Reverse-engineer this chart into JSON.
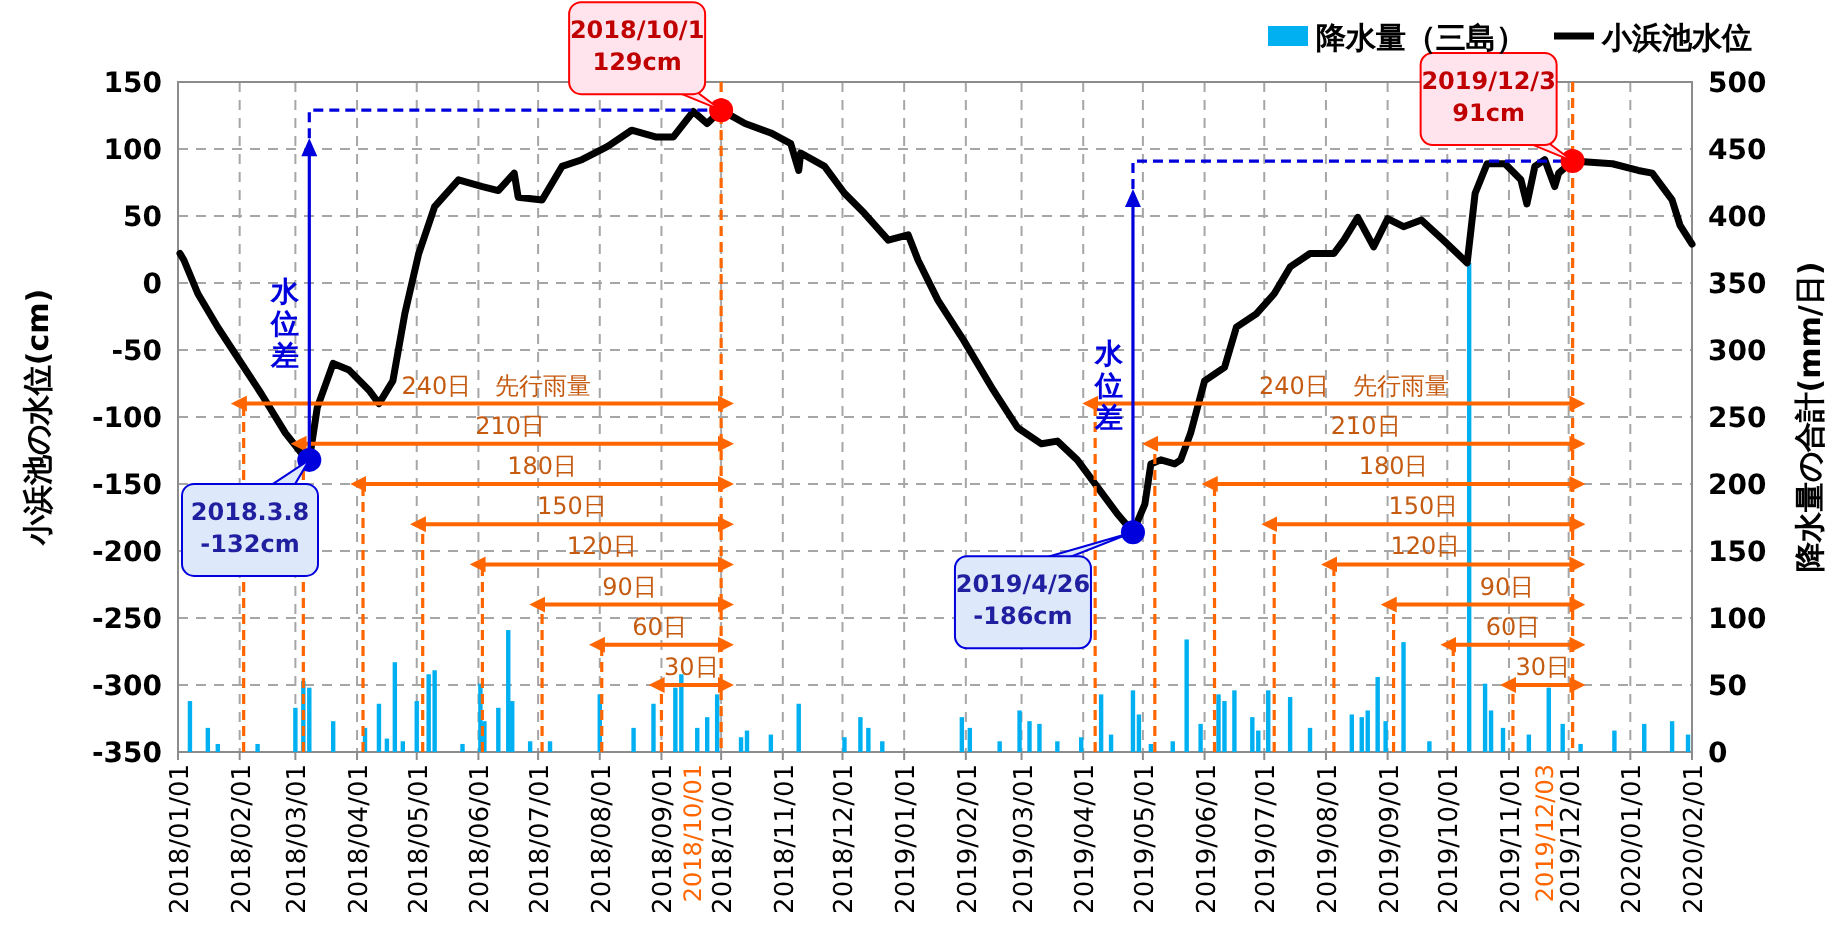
{
  "chart_data": {
    "type": "line",
    "ylabel": "小浜池の水位(cm)",
    "y2label": "降水量の合計(mm/日)",
    "xlim": [
      "2018-01-01",
      "2020-02-01"
    ],
    "xticks": [
      {
        "value": "2018-01-01",
        "label": "2018/01/01"
      },
      {
        "value": "2018-02-01",
        "label": "2018/02/01"
      },
      {
        "value": "2018-03-01",
        "label": "2018/03/01"
      },
      {
        "value": "2018-04-01",
        "label": "2018/04/01"
      },
      {
        "value": "2018-05-01",
        "label": "2018/05/01"
      },
      {
        "value": "2018-06-01",
        "label": "2018/06/01"
      },
      {
        "value": "2018-07-01",
        "label": "2018/07/01"
      },
      {
        "value": "2018-08-01",
        "label": "2018/08/01"
      },
      {
        "value": "2018-09-01",
        "label": "2018/09/01"
      },
      {
        "value": "2018-10-01",
        "label": "2018/10/01"
      },
      {
        "value": "2018-11-01",
        "label": "2018/11/01"
      },
      {
        "value": "2018-12-01",
        "label": "2018/12/01"
      },
      {
        "value": "2019-01-01",
        "label": "2019/01/01"
      },
      {
        "value": "2019-02-01",
        "label": "2019/02/01"
      },
      {
        "value": "2019-03-01",
        "label": "2019/03/01"
      },
      {
        "value": "2019-04-01",
        "label": "2019/04/01"
      },
      {
        "value": "2019-05-01",
        "label": "2019/05/01"
      },
      {
        "value": "2019-06-01",
        "label": "2019/06/01"
      },
      {
        "value": "2019-07-01",
        "label": "2019/07/01"
      },
      {
        "value": "2019-08-01",
        "label": "2019/08/01"
      },
      {
        "value": "2019-09-01",
        "label": "2019/09/01"
      },
      {
        "value": "2019-10-01",
        "label": "2019/10/01"
      },
      {
        "value": "2019-11-01",
        "label": "2019/11/01"
      },
      {
        "value": "2019-12-01",
        "label": "2019/12/01"
      },
      {
        "value": "2020-01-01",
        "label": "2020/01/01"
      },
      {
        "value": "2020-02-01",
        "label": "2020/02/01"
      }
    ],
    "ylim": [
      -350,
      150
    ],
    "yticks": [
      -350,
      -300,
      -250,
      -200,
      -150,
      -100,
      -50,
      0,
      50,
      100,
      150
    ],
    "y2lim": [
      0,
      500
    ],
    "y2ticks": [
      0,
      50,
      100,
      150,
      200,
      250,
      300,
      350,
      400,
      450,
      500
    ],
    "grid": true,
    "legend": "top right",
    "series": [
      {
        "name": "降水量（三島）",
        "type": "bar",
        "axis": "y2",
        "color": "#00b0f0",
        "x": [
          "2018-01-07",
          "2018-01-16",
          "2018-01-21",
          "2018-02-10",
          "2018-03-01",
          "2018-03-05",
          "2018-03-08",
          "2018-03-20",
          "2018-04-05",
          "2018-04-12",
          "2018-04-16",
          "2018-04-20",
          "2018-04-24",
          "2018-05-01",
          "2018-05-07",
          "2018-05-10",
          "2018-05-24",
          "2018-06-02",
          "2018-06-04",
          "2018-06-11",
          "2018-06-16",
          "2018-06-18",
          "2018-06-27",
          "2018-07-07",
          "2018-08-01",
          "2018-08-18",
          "2018-08-28",
          "2018-09-08",
          "2018-09-11",
          "2018-09-19",
          "2018-09-24",
          "2018-09-29",
          "2018-10-11",
          "2018-10-14",
          "2018-10-26",
          "2018-11-09",
          "2018-12-02",
          "2018-12-10",
          "2018-12-14",
          "2018-12-21",
          "2019-01-30",
          "2019-02-03",
          "2019-02-18",
          "2019-02-28",
          "2019-03-05",
          "2019-03-10",
          "2019-03-19",
          "2019-03-31",
          "2019-04-10",
          "2019-04-15",
          "2019-04-26",
          "2019-04-29",
          "2019-05-05",
          "2019-05-16",
          "2019-05-23",
          "2019-05-30",
          "2019-06-08",
          "2019-06-11",
          "2019-06-16",
          "2019-06-25",
          "2019-06-28",
          "2019-07-03",
          "2019-07-14",
          "2019-07-24",
          "2019-08-14",
          "2019-08-19",
          "2019-08-22",
          "2019-08-27",
          "2019-08-31",
          "2019-09-09",
          "2019-09-22",
          "2019-10-12",
          "2019-10-20",
          "2019-10-23",
          "2019-10-29",
          "2019-11-11",
          "2019-11-21",
          "2019-11-28",
          "2019-12-07",
          "2019-12-24",
          "2020-01-08",
          "2020-01-22",
          "2020-01-30"
        ],
        "values": [
          38,
          18,
          6,
          6,
          33,
          53,
          48,
          23,
          18,
          36,
          10,
          67,
          8,
          38,
          58,
          61,
          6,
          51,
          23,
          33,
          91,
          38,
          8,
          8,
          43,
          18,
          36,
          48,
          58,
          18,
          26,
          43,
          11,
          16,
          13,
          36,
          11,
          26,
          18,
          8,
          26,
          18,
          8,
          31,
          23,
          21,
          8,
          11,
          43,
          13,
          46,
          28,
          6,
          8,
          84,
          21,
          43,
          38,
          46,
          26,
          16,
          46,
          41,
          18,
          28,
          26,
          31,
          56,
          23,
          82,
          8,
          365,
          51,
          31,
          18,
          13,
          48,
          21,
          6,
          16,
          21,
          23,
          13
        ]
      },
      {
        "name": "小浜池水位",
        "color": "#000000",
        "x": [
          "2018-01-02",
          "2018-01-04",
          "2018-01-11",
          "2018-01-21",
          "2018-02-01",
          "2018-02-12",
          "2018-02-24",
          "2018-03-04",
          "2018-03-08",
          "2018-03-12",
          "2018-03-20",
          "2018-03-28",
          "2018-04-07",
          "2018-04-12",
          "2018-04-19",
          "2018-04-25",
          "2018-05-02",
          "2018-05-10",
          "2018-05-22",
          "2018-06-03",
          "2018-06-11",
          "2018-06-19",
          "2018-06-21",
          "2018-07-03",
          "2018-07-13",
          "2018-07-23",
          "2018-08-05",
          "2018-08-17",
          "2018-08-29",
          "2018-09-07",
          "2018-09-17",
          "2018-09-24",
          "2018-10-01",
          "2018-10-13",
          "2018-10-26",
          "2018-11-05",
          "2018-11-09",
          "2018-11-10",
          "2018-11-22",
          "2018-12-02",
          "2018-12-12",
          "2018-12-24",
          "2019-01-03",
          "2019-01-08",
          "2019-01-18",
          "2019-01-31",
          "2019-02-14",
          "2019-02-27",
          "2019-03-11",
          "2019-03-19",
          "2019-03-29",
          "2019-04-08",
          "2019-04-18",
          "2019-04-26",
          "2019-05-02",
          "2019-05-05",
          "2019-05-10",
          "2019-05-17",
          "2019-05-20",
          "2019-05-25",
          "2019-06-01",
          "2019-06-11",
          "2019-06-17",
          "2019-06-27",
          "2019-07-06",
          "2019-07-14",
          "2019-07-24",
          "2019-08-05",
          "2019-08-10",
          "2019-08-17",
          "2019-08-25",
          "2019-09-01",
          "2019-09-09",
          "2019-09-18",
          "2019-09-29",
          "2019-10-11",
          "2019-10-15",
          "2019-10-21",
          "2019-10-30",
          "2019-11-07",
          "2019-11-10",
          "2019-11-14",
          "2019-11-19",
          "2019-11-24",
          "2019-11-26",
          "2019-12-03",
          "2019-12-23",
          "2020-01-05",
          "2020-01-12",
          "2020-01-22",
          "2020-01-26",
          "2020-02-01"
        ],
        "values": [
          22,
          17,
          -8,
          -33,
          -58,
          -83,
          -112,
          -127,
          -132,
          -93,
          -60,
          -65,
          -80,
          -90,
          -73,
          -23,
          22,
          57,
          77,
          72,
          69,
          82,
          64,
          62,
          87,
          92,
          102,
          114,
          109,
          109,
          128,
          119,
          129,
          119,
          112,
          104,
          84,
          97,
          87,
          67,
          52,
          32,
          36,
          17,
          -13,
          -43,
          -78,
          -108,
          -120,
          -118,
          -132,
          -152,
          -172,
          -186,
          -165,
          -135,
          -132,
          -135,
          -132,
          -112,
          -73,
          -63,
          -33,
          -23,
          -8,
          12,
          22,
          22,
          32,
          49,
          27,
          48,
          42,
          47,
          32,
          15,
          67,
          89,
          89,
          77,
          59,
          87,
          92,
          72,
          82,
          91,
          89,
          84,
          82,
          62,
          43,
          29
        ]
      },
      {
        "type": "line",
        "color": "#ff6600",
        "line_style": "dashed",
        "x": [
          "2018-02-03",
          "2018-02-03"
        ],
        "values": [
          -350,
          -90
        ]
      },
      {
        "type": "line",
        "color": "#ff6600",
        "line_style": "dashed",
        "x": [
          "2018-03-05",
          "2018-03-05"
        ],
        "values": [
          -350,
          -120
        ]
      },
      {
        "type": "line",
        "color": "#ff6600",
        "line_style": "dashed",
        "x": [
          "2018-04-04",
          "2018-04-04"
        ],
        "values": [
          -350,
          -150
        ]
      },
      {
        "type": "line",
        "color": "#ff6600",
        "line_style": "dashed",
        "x": [
          "2018-05-04",
          "2018-05-04"
        ],
        "values": [
          -350,
          -180
        ]
      },
      {
        "type": "line",
        "color": "#ff6600",
        "line_style": "dashed",
        "x": [
          "2018-06-03",
          "2018-06-03"
        ],
        "values": [
          -350,
          -210
        ]
      },
      {
        "type": "line",
        "color": "#ff6600",
        "line_style": "dashed",
        "x": [
          "2018-07-03",
          "2018-07-03"
        ],
        "values": [
          -350,
          -240
        ]
      },
      {
        "type": "line",
        "color": "#ff6600",
        "line_style": "dashed",
        "x": [
          "2018-08-02",
          "2018-08-02"
        ],
        "values": [
          -350,
          -270
        ]
      },
      {
        "type": "line",
        "color": "#ff6600",
        "line_style": "dashed",
        "x": [
          "2018-09-01",
          "2018-09-01"
        ],
        "values": [
          -350,
          -300
        ]
      },
      {
        "type": "line",
        "color": "#ff6600",
        "line_style": "dashed",
        "x": [
          "2019-04-07",
          "2019-04-07"
        ],
        "values": [
          -350,
          -90
        ]
      },
      {
        "type": "line",
        "color": "#ff6600",
        "line_style": "dashed",
        "x": [
          "2019-05-07",
          "2019-05-07"
        ],
        "values": [
          -350,
          -120
        ]
      },
      {
        "type": "line",
        "color": "#ff6600",
        "line_style": "dashed",
        "x": [
          "2019-06-06",
          "2019-06-06"
        ],
        "values": [
          -350,
          -150
        ]
      },
      {
        "type": "line",
        "color": "#ff6600",
        "line_style": "dashed",
        "x": [
          "2019-07-06",
          "2019-07-06"
        ],
        "values": [
          -350,
          -180
        ]
      },
      {
        "type": "line",
        "color": "#ff6600",
        "line_style": "dashed",
        "x": [
          "2019-08-05",
          "2019-08-05"
        ],
        "values": [
          -350,
          -210
        ]
      },
      {
        "type": "line",
        "color": "#ff6600",
        "line_style": "dashed",
        "x": [
          "2019-09-04",
          "2019-09-04"
        ],
        "values": [
          -350,
          -240
        ]
      },
      {
        "type": "line",
        "color": "#ff6600",
        "line_style": "dashed",
        "x": [
          "2019-10-04",
          "2019-10-04"
        ],
        "values": [
          -350,
          -270
        ]
      },
      {
        "type": "line",
        "color": "#ff6600",
        "line_style": "dashed",
        "x": [
          "2019-11-03",
          "2019-11-03"
        ],
        "values": [
          -350,
          -300
        ]
      },
      {
        "type": "line",
        "color": "#ff6600",
        "x": [
          "2018-02-03",
          "2018-10-01"
        ],
        "values": [
          -90,
          -90
        ]
      },
      {
        "type": "line",
        "color": "#ff6600",
        "x": [
          "2018-03-05",
          "2018-10-01"
        ],
        "values": [
          -120,
          -120
        ]
      },
      {
        "type": "line",
        "color": "#ff6600",
        "x": [
          "2018-04-04",
          "2018-10-01"
        ],
        "values": [
          -150,
          -150
        ]
      },
      {
        "type": "line",
        "color": "#ff6600",
        "x": [
          "2018-05-04",
          "2018-10-01"
        ],
        "values": [
          -180,
          -180
        ]
      },
      {
        "type": "line",
        "color": "#ff6600",
        "x": [
          "2018-06-03",
          "2018-10-01"
        ],
        "values": [
          -210,
          -210
        ]
      },
      {
        "type": "line",
        "color": "#ff6600",
        "x": [
          "2018-07-03",
          "2018-10-01"
        ],
        "values": [
          -240,
          -240
        ]
      },
      {
        "type": "line",
        "color": "#ff6600",
        "x": [
          "2018-08-02",
          "2018-10-01"
        ],
        "values": [
          -270,
          -270
        ]
      },
      {
        "type": "line",
        "color": "#ff6600",
        "x": [
          "2018-09-01",
          "2018-10-01"
        ],
        "values": [
          -300,
          -300
        ]
      },
      {
        "type": "line",
        "color": "#ff6600",
        "x": [
          "2019-04-07",
          "2019-12-03"
        ],
        "values": [
          -90,
          -90
        ]
      },
      {
        "type": "line",
        "color": "#ff6600",
        "x": [
          "2019-05-07",
          "2019-12-03"
        ],
        "values": [
          -120,
          -120
        ]
      },
      {
        "type": "line",
        "color": "#ff6600",
        "x": [
          "2019-06-06",
          "2019-12-03"
        ],
        "values": [
          -150,
          -150
        ]
      },
      {
        "type": "line",
        "color": "#ff6600",
        "x": [
          "2019-07-06",
          "2019-12-03"
        ],
        "values": [
          -180,
          -180
        ]
      },
      {
        "type": "line",
        "color": "#ff6600",
        "x": [
          "2019-08-05",
          "2019-12-03"
        ],
        "values": [
          -210,
          -210
        ]
      },
      {
        "type": "line",
        "color": "#ff6600",
        "x": [
          "2019-09-04",
          "2019-12-03"
        ],
        "values": [
          -240,
          -240
        ]
      },
      {
        "type": "line",
        "color": "#ff6600",
        "x": [
          "2019-10-04",
          "2019-12-03"
        ],
        "values": [
          -270,
          -270
        ]
      },
      {
        "type": "line",
        "color": "#ff6600",
        "x": [
          "2019-11-03",
          "2019-12-03"
        ],
        "values": [
          -300,
          -300
        ]
      },
      {
        "type": "scatter",
        "color": "#0000dd",
        "x": [
          "2018-03-08",
          "2019-04-26"
        ],
        "values": [
          -132,
          -186
        ]
      },
      {
        "type": "scatter",
        "color": "#ff0000",
        "x": [
          "2018-10-01",
          "2019-12-03"
        ],
        "values": [
          129,
          91
        ]
      }
    ],
    "ref_lines": [
      {
        "axis": "x",
        "value": "2018-10-01",
        "label": "2018/10/01",
        "color": "#ff6600",
        "line_style": "dashed"
      },
      {
        "axis": "x",
        "value": "2019-12-03",
        "label": "2019/12/03",
        "color": "#ff6600",
        "line_style": "dashed"
      }
    ],
    "annotations": [
      {
        "text": "2018.3.8\n-132cm",
        "x": "2018-03-08",
        "y": -132
      },
      {
        "text": "2018/10/1\n129cm",
        "x": "2018-10-01",
        "y": 129
      },
      {
        "text": "2019/4/26\n-186cm",
        "x": "2019-04-26",
        "y": -186
      },
      {
        "text": "2019/12/3\n91cm",
        "x": "2019-12-03",
        "y": 91
      },
      "水位差",
      "水位差",
      {
        "text": "240日　先行雨量",
        "x": "2018-06-10",
        "y": -90
      },
      {
        "text": "210日",
        "x": "2018-06-17",
        "y": -120
      },
      {
        "text": "180日",
        "x": "2018-07-03",
        "y": -150
      },
      {
        "text": "150日",
        "x": "2018-07-18",
        "y": -180
      },
      {
        "text": "120日",
        "x": "2018-08-02",
        "y": -210
      },
      {
        "text": "90日",
        "x": "2018-08-16",
        "y": -240
      },
      {
        "text": "60日",
        "x": "2018-08-31",
        "y": -270
      },
      {
        "text": "30日",
        "x": "2018-09-16",
        "y": -300
      },
      {
        "text": "240日　先行雨量",
        "x": "2019-08-15",
        "y": -90
      },
      {
        "text": "210日",
        "x": "2019-08-21",
        "y": -120
      },
      {
        "text": "180日",
        "x": "2019-09-04",
        "y": -150
      },
      {
        "text": "150日",
        "x": "2019-09-19",
        "y": -180
      },
      {
        "text": "120日",
        "x": "2019-09-20",
        "y": -210
      },
      {
        "text": "90日",
        "x": "2019-10-31",
        "y": -240
      },
      {
        "text": "60日",
        "x": "2019-11-03",
        "y": -270
      },
      {
        "text": "30日",
        "x": "2019-11-18",
        "y": -300
      }
    ]
  }
}
